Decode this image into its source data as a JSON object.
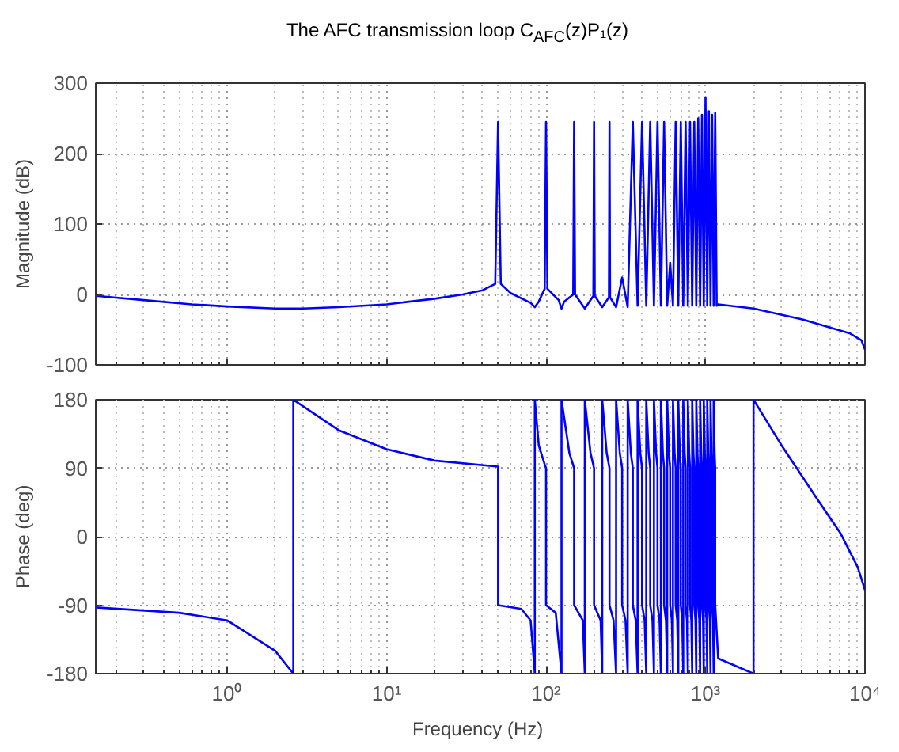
{
  "chart_data": [
    {
      "type": "line",
      "title": "The AFC transmission loop  C$_{AFC}$(z)P₁(z)",
      "ylabel": "Magnitude (dB)",
      "log": "x",
      "grid": true,
      "tick_labels": "y",
      "line_style": "solid",
      "xlim": [
        0.15,
        10000
      ],
      "xticks": [
        1,
        10,
        100,
        1000,
        10000
      ],
      "ylim": [
        -100,
        300
      ],
      "yticks": [
        -100,
        0,
        100,
        200,
        300
      ],
      "series": [
        {
          "color": "#0000ff",
          "x": [
            0.15,
            0.3,
            0.6,
            1,
            2,
            3,
            5,
            10,
            20,
            30,
            40,
            48,
            50,
            52,
            60,
            80,
            85,
            90,
            98,
            100,
            102,
            120,
            125,
            130,
            148,
            150,
            152,
            175,
            198,
            200,
            202,
            225,
            248,
            250,
            252,
            275,
            300,
            325,
            350,
            375,
            400,
            425,
            450,
            475,
            500,
            525,
            550,
            575,
            600,
            625,
            650,
            675,
            700,
            725,
            750,
            775,
            800,
            825,
            850,
            875,
            900,
            925,
            950,
            975,
            1000,
            1025,
            1050,
            1075,
            1100,
            1125,
            1150,
            1175,
            1200,
            2000,
            4000,
            8000,
            9500,
            10000
          ],
          "values": [
            -2,
            -8,
            -14,
            -17,
            -20,
            -20,
            -18,
            -14,
            -6,
            0,
            6,
            15,
            245,
            15,
            2,
            -12,
            -18,
            -10,
            8,
            245,
            8,
            -8,
            -20,
            -10,
            0,
            245,
            0,
            -20,
            -2,
            245,
            -2,
            -18,
            -4,
            245,
            -4,
            -18,
            24,
            -18,
            245,
            -16,
            245,
            -16,
            245,
            -16,
            245,
            -16,
            245,
            -16,
            45,
            -16,
            245,
            -16,
            245,
            -16,
            245,
            -16,
            245,
            -16,
            245,
            -16,
            250,
            -16,
            255,
            -16,
            280,
            -16,
            260,
            -16,
            255,
            -16,
            258,
            -16,
            -14,
            -20,
            -35,
            -55,
            -65,
            -78
          ]
        }
      ]
    },
    {
      "type": "line",
      "ylabel": "Phase (deg)",
      "xlabel": "Frequency  (Hz)",
      "log": "x",
      "grid": true,
      "line_style": "solid",
      "xlim": [
        0.15,
        10000
      ],
      "xticks": [
        {
          "value": 1,
          "label": "10⁰"
        },
        {
          "value": 10,
          "label": "10¹"
        },
        {
          "value": 100,
          "label": "10²"
        },
        {
          "value": 1000,
          "label": "10³"
        },
        {
          "value": 10000,
          "label": "10⁴"
        }
      ],
      "ylim": [
        -180,
        180
      ],
      "yticks": [
        -180,
        -90,
        0,
        90,
        180
      ],
      "series": [
        {
          "color": "#0000ff",
          "x": [
            0.15,
            0.5,
            1,
            2,
            2.6,
            2.6,
            5,
            10,
            20,
            50,
            50,
            70,
            80,
            85,
            85,
            90,
            98,
            100,
            100,
            115,
            125,
            125,
            140,
            150,
            150,
            170,
            175,
            175,
            190,
            200,
            200,
            220,
            225,
            225,
            240,
            250,
            250,
            265,
            275,
            275,
            290,
            300,
            300,
            315,
            325,
            325,
            340,
            350,
            350,
            365,
            375,
            375,
            390,
            400,
            400,
            415,
            425,
            425,
            440,
            450,
            450,
            465,
            475,
            475,
            490,
            500,
            500,
            515,
            525,
            525,
            540,
            550,
            550,
            565,
            575,
            575,
            590,
            600,
            600,
            615,
            625,
            625,
            640,
            650,
            650,
            665,
            675,
            675,
            690,
            700,
            700,
            715,
            725,
            725,
            740,
            750,
            750,
            765,
            775,
            775,
            790,
            800,
            800,
            815,
            825,
            825,
            840,
            850,
            850,
            865,
            875,
            875,
            890,
            900,
            900,
            915,
            925,
            925,
            940,
            950,
            950,
            965,
            975,
            975,
            990,
            1000,
            1000,
            1015,
            1025,
            1025,
            1040,
            1050,
            1050,
            1065,
            1075,
            1075,
            1090,
            1100,
            1100,
            1115,
            1125,
            1125,
            1140,
            1150,
            1150,
            1200,
            2000,
            2000,
            3000,
            5000,
            7000,
            9000,
            10000
          ],
          "values": [
            -93,
            -100,
            -110,
            -150,
            -180,
            180,
            140,
            115,
            100,
            92,
            -90,
            -95,
            -110,
            -180,
            180,
            120,
            95,
            90,
            -90,
            -100,
            -180,
            180,
            110,
            90,
            -90,
            -110,
            -180,
            180,
            110,
            90,
            -90,
            -110,
            -180,
            180,
            110,
            90,
            -90,
            -110,
            -180,
            180,
            110,
            90,
            -90,
            -110,
            -180,
            180,
            110,
            90,
            -90,
            -110,
            -180,
            180,
            110,
            90,
            -90,
            -110,
            -180,
            180,
            110,
            90,
            -90,
            -110,
            -180,
            180,
            110,
            90,
            -90,
            -110,
            -180,
            180,
            110,
            90,
            -90,
            -110,
            -180,
            180,
            110,
            90,
            -90,
            -110,
            -180,
            180,
            110,
            90,
            -90,
            -110,
            -180,
            180,
            110,
            90,
            -90,
            -110,
            -180,
            180,
            110,
            90,
            -90,
            -110,
            -180,
            180,
            110,
            90,
            -90,
            -110,
            -180,
            180,
            110,
            90,
            -90,
            -110,
            -180,
            180,
            110,
            90,
            -90,
            -110,
            -180,
            180,
            110,
            90,
            -90,
            -110,
            -180,
            180,
            110,
            90,
            -90,
            -110,
            -180,
            180,
            110,
            90,
            -90,
            -110,
            -180,
            180,
            110,
            90,
            -90,
            -110,
            -180,
            180,
            110,
            90,
            -90,
            -160,
            -180,
            180,
            120,
            50,
            5,
            -40,
            -70
          ]
        }
      ]
    }
  ]
}
